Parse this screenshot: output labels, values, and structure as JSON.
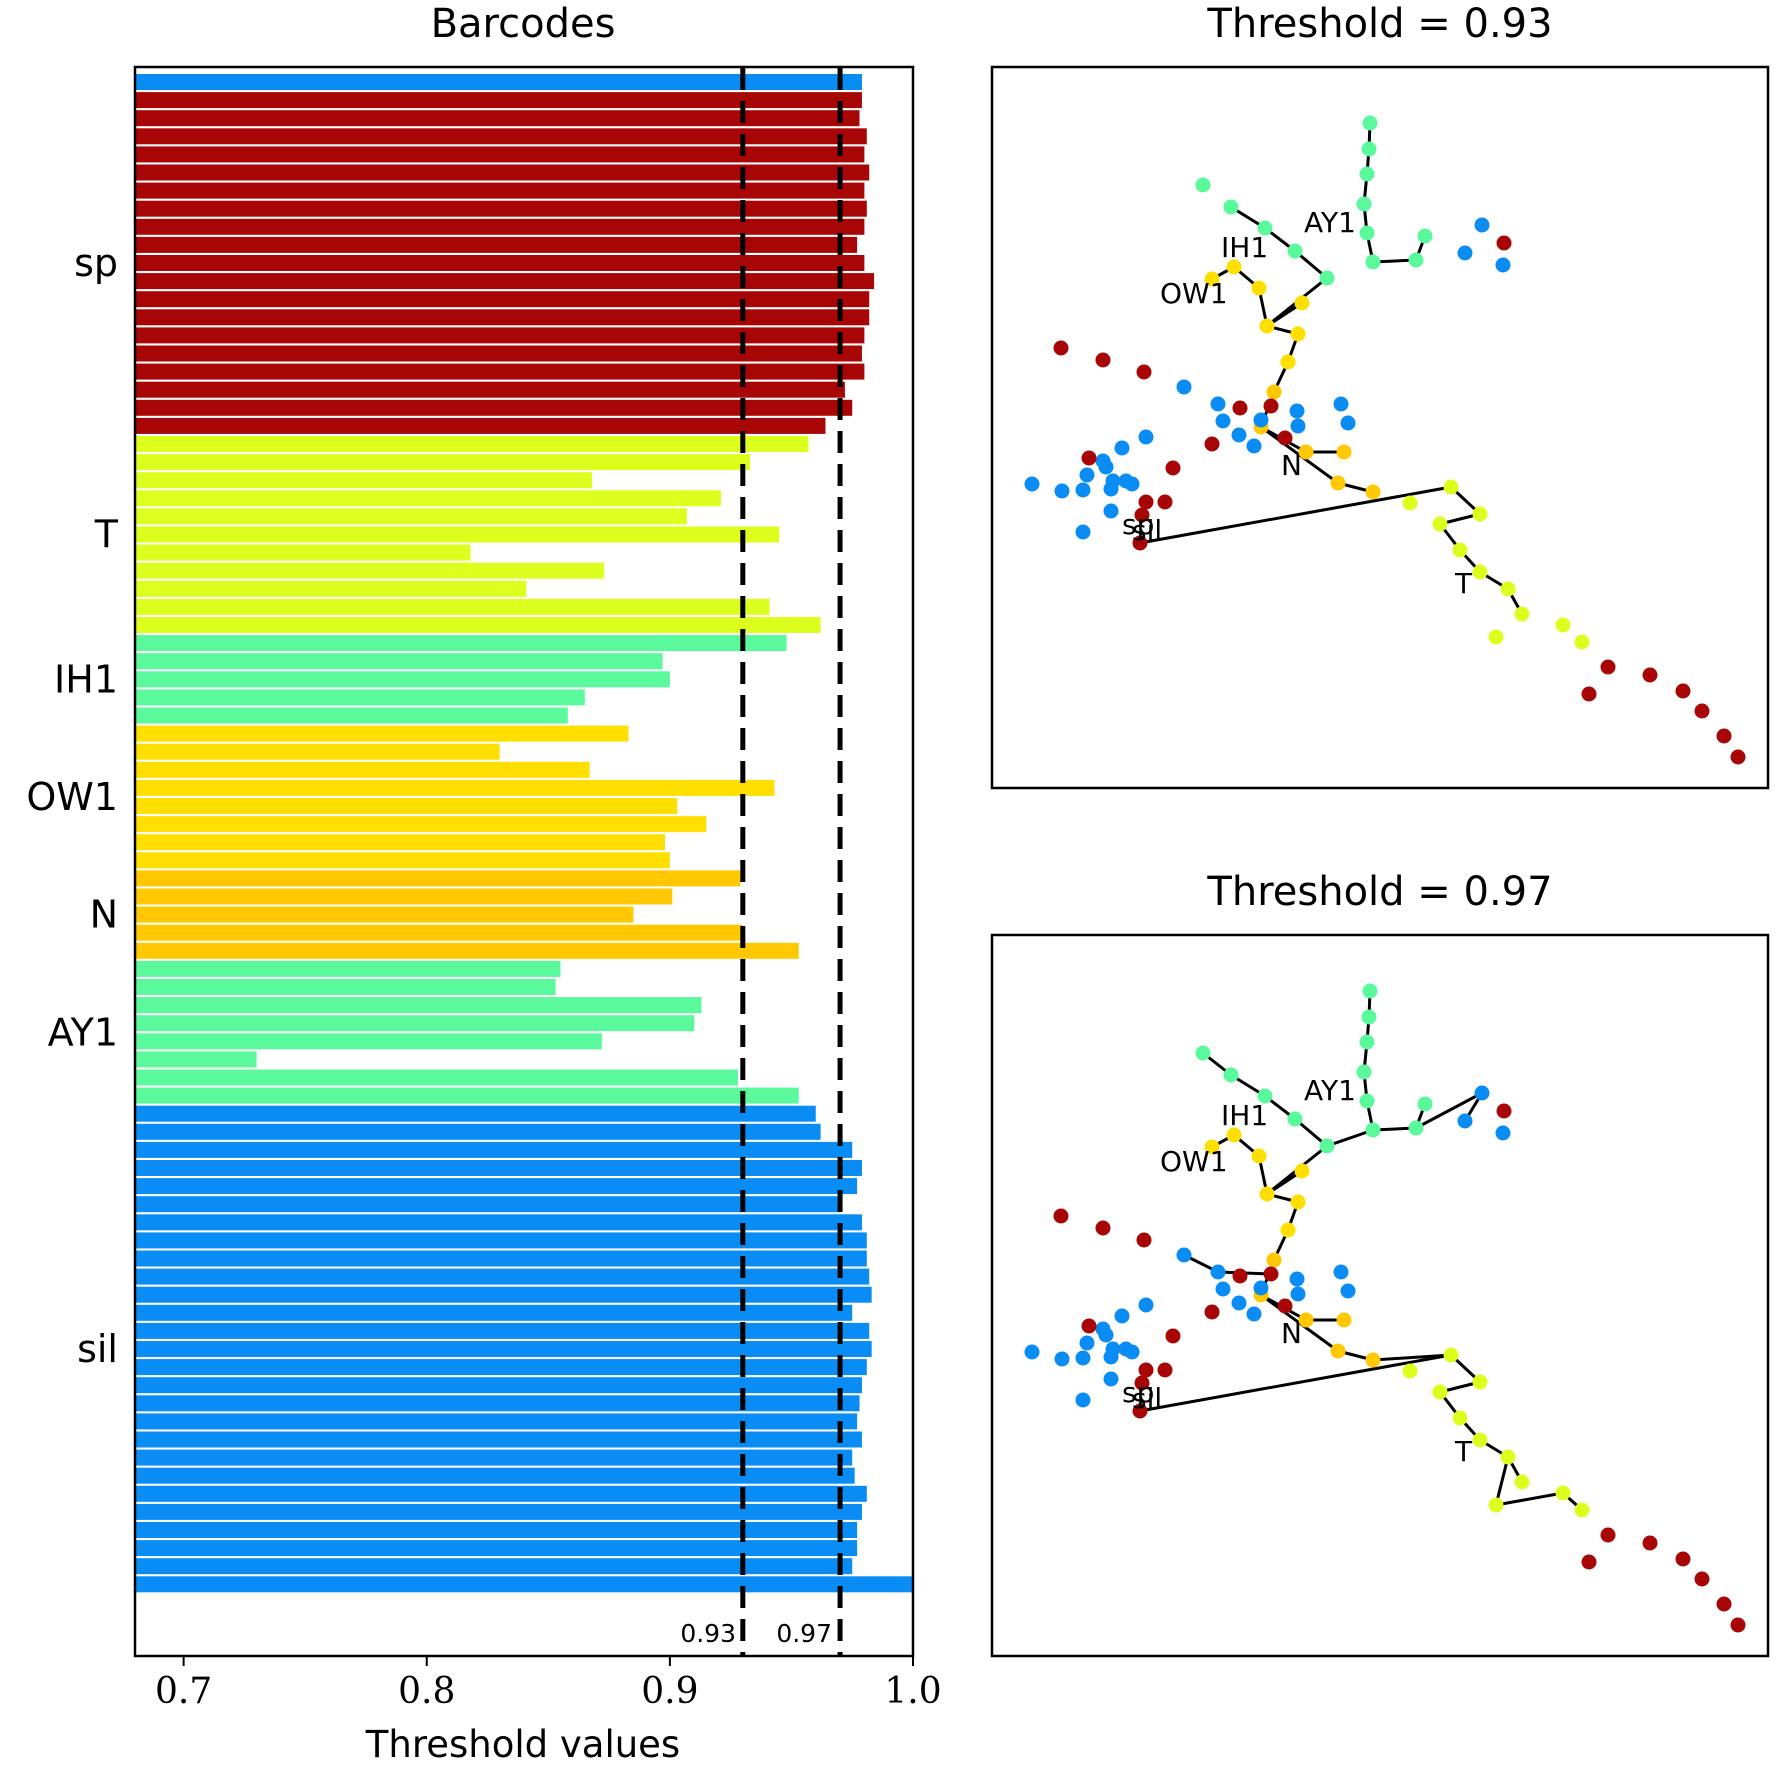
{
  "colors": {
    "sp": "#a80606",
    "T": "#dcff1e",
    "IH1": "#5afa9c",
    "OW1": "#ffdf00",
    "N": "#ffc800",
    "AY1": "#5afa9c",
    "sil": "#0a8cf5",
    "threshold_line": "#000000"
  },
  "chart_data": [
    {
      "type": "bar",
      "orientation": "horizontal",
      "title": "Barcodes",
      "xlabel": "Threshold values",
      "xlim": [
        0.68,
        1.0
      ],
      "xticks": [
        "0.7",
        "0.8",
        "0.9",
        "1.0"
      ],
      "thresholds": [
        0.93,
        0.97
      ],
      "threshold_labels": [
        "0.93",
        "0.97"
      ],
      "groups": [
        {
          "label": "sp",
          "color_key": "sp",
          "values": [
            0.979,
            0.978,
            0.981,
            0.98,
            0.982,
            0.98,
            0.981,
            0.98,
            0.977,
            0.98,
            0.984,
            0.982,
            0.982,
            0.98,
            0.979,
            0.98,
            0.972,
            0.975,
            0.964
          ]
        },
        {
          "label": "T",
          "color_key": "T",
          "values": [
            0.957,
            0.933,
            0.868,
            0.921,
            0.907,
            0.945,
            0.818,
            0.873,
            0.841,
            0.941,
            0.962
          ]
        },
        {
          "label": "IH1",
          "color_key": "IH1",
          "values": [
            0.948,
            0.897,
            0.9,
            0.865,
            0.858
          ]
        },
        {
          "label": "OW1",
          "color_key": "OW1",
          "values": [
            0.883,
            0.83,
            0.867,
            0.943,
            0.903,
            0.915,
            0.898,
            0.9
          ]
        },
        {
          "label": "N",
          "color_key": "N",
          "values": [
            0.929,
            0.901,
            0.885,
            0.93,
            0.953
          ]
        },
        {
          "label": "AY1",
          "color_key": "AY1",
          "values": [
            0.855,
            0.853,
            0.913,
            0.91,
            0.872,
            0.73,
            0.928,
            0.953
          ]
        },
        {
          "label": "sil",
          "color_key": "sil",
          "values": [
            0.96,
            0.962,
            0.975,
            0.979,
            0.977,
            0.97,
            0.979,
            0.981,
            0.981,
            0.982,
            0.983,
            0.975,
            0.982,
            0.983,
            0.981,
            0.979,
            0.978,
            0.977,
            0.979,
            0.975,
            0.976,
            0.981,
            0.979,
            0.977,
            0.977,
            0.975,
            1.0
          ]
        }
      ],
      "top_bar": {
        "color_key": "sil",
        "value": 0.979
      }
    },
    {
      "type": "scatter",
      "title": "Threshold = 0.93",
      "point_labels": [
        "AY1",
        "IH1",
        "OW1",
        "N",
        "sp",
        "sil",
        "T"
      ]
    },
    {
      "type": "scatter",
      "title": "Threshold = 0.97",
      "point_labels": [
        "AY1",
        "IH1",
        "OW1",
        "N",
        "sp",
        "sil",
        "T"
      ]
    }
  ]
}
